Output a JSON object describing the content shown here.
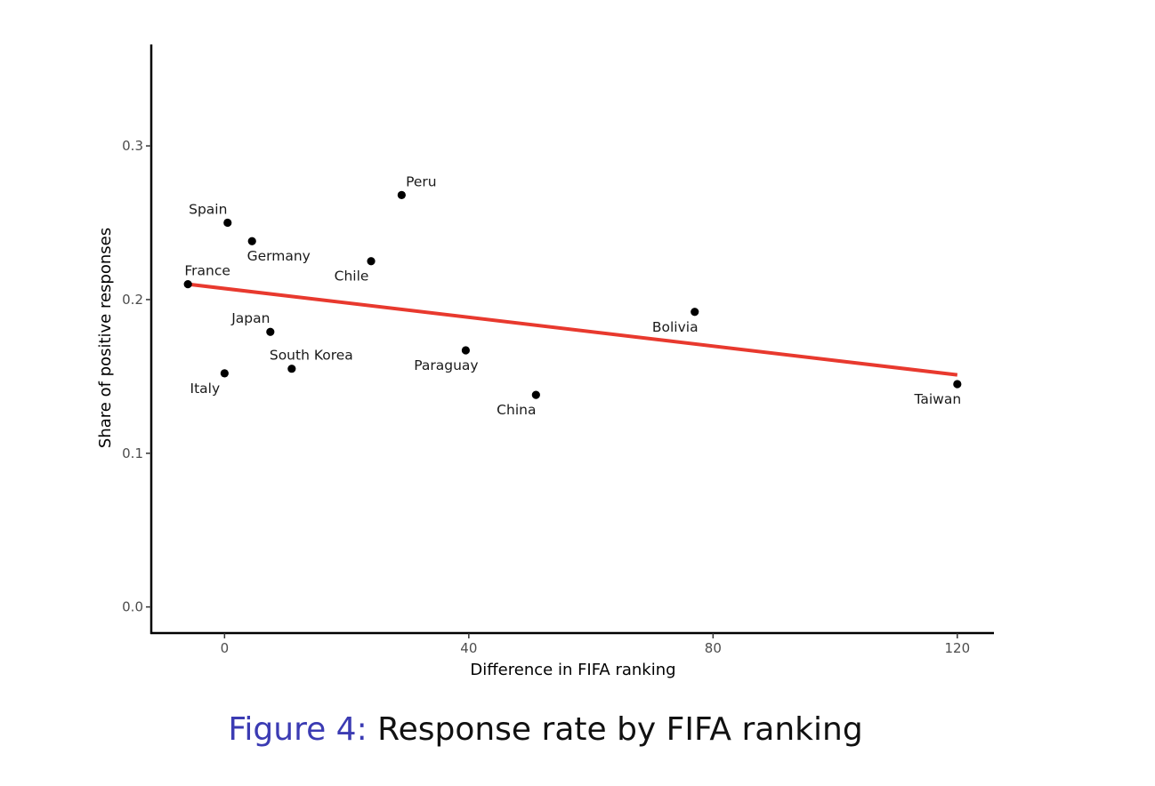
{
  "chart_data": {
    "type": "scatter",
    "xlabel": "Difference in FIFA ranking",
    "ylabel": "Share of positive responses",
    "xlim": [
      -12,
      126
    ],
    "ylim": [
      -0.017,
      0.366
    ],
    "x_ticks": [
      0,
      40,
      80,
      120
    ],
    "x_tick_labels": [
      "0",
      "40",
      "80",
      "120"
    ],
    "y_ticks": [
      0.0,
      0.1,
      0.2,
      0.3
    ],
    "y_tick_labels": [
      "0.0",
      "0.1",
      "0.2",
      "0.3"
    ],
    "grid": false,
    "colors": {
      "points": "#000000",
      "fit_line": "#e8392e",
      "axis": "#000000"
    },
    "points": [
      {
        "label": "Spain",
        "x": 0.5,
        "y": 0.25,
        "label_pos": "above-left"
      },
      {
        "label": "Germany",
        "x": 4.5,
        "y": 0.238,
        "label_pos": "below-right"
      },
      {
        "label": "Peru",
        "x": 29,
        "y": 0.268,
        "label_pos": "above-right"
      },
      {
        "label": "Chile",
        "x": 24,
        "y": 0.225,
        "label_pos": "below-left"
      },
      {
        "label": "France",
        "x": -6,
        "y": 0.21,
        "label_pos": "above-right"
      },
      {
        "label": "Japan",
        "x": 7.5,
        "y": 0.179,
        "label_pos": "above-left"
      },
      {
        "label": "South Korea",
        "x": 11,
        "y": 0.155,
        "label_pos": "above-right"
      },
      {
        "label": "Italy",
        "x": 0,
        "y": 0.152,
        "label_pos": "below-left"
      },
      {
        "label": "Paraguay",
        "x": 39.5,
        "y": 0.167,
        "label_pos": "below-left"
      },
      {
        "label": "China",
        "x": 51,
        "y": 0.138,
        "label_pos": "below-left"
      },
      {
        "label": "Bolivia",
        "x": 77,
        "y": 0.192,
        "label_pos": "below-left"
      },
      {
        "label": "Taiwan",
        "x": 120,
        "y": 0.145,
        "label_pos": "below-left"
      }
    ],
    "fit_line": {
      "x": [
        -6,
        120
      ],
      "y": [
        0.21,
        0.151
      ]
    }
  },
  "caption": {
    "prefix": "Figure 4:",
    "text": "Response rate by FIFA ranking"
  }
}
